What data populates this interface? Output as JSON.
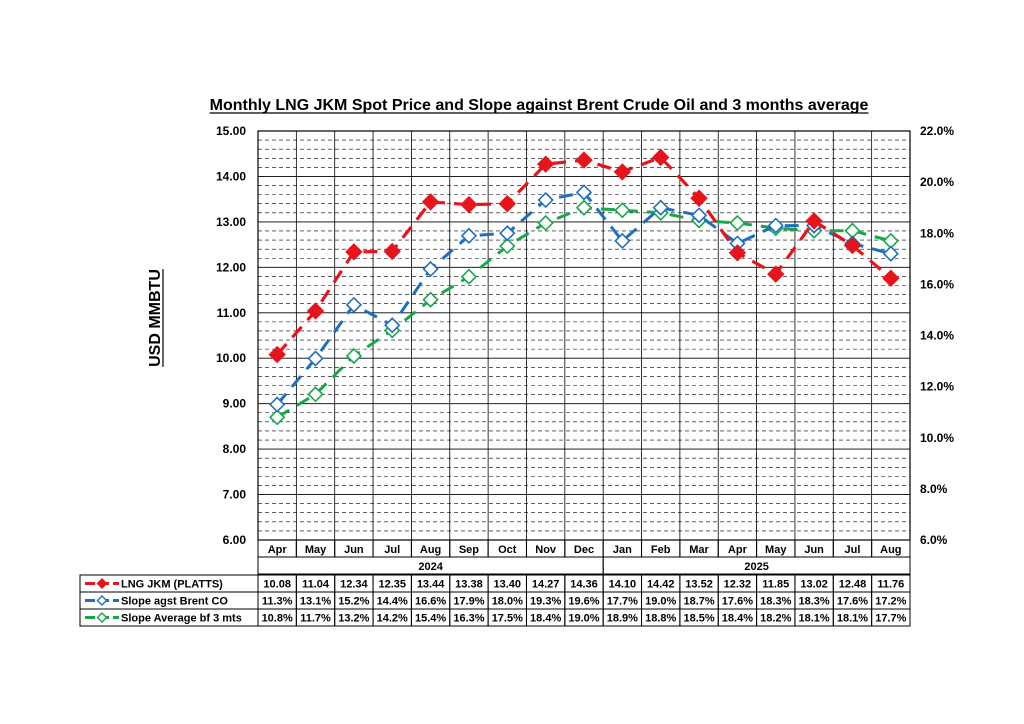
{
  "chart_data": {
    "type": "line",
    "title": "Monthly LNG JKM Spot Price and Slope against Brent Crude Oil and 3 months average",
    "ylabel": "USD MMBTU",
    "y2label": "",
    "categories": [
      "Apr",
      "May",
      "Jun",
      "Jul",
      "Aug",
      "Sep",
      "Oct",
      "Nov",
      "Dec",
      "Jan",
      "Feb",
      "Mar",
      "Apr",
      "May",
      "Jun",
      "Jul",
      "Aug"
    ],
    "year_groups": [
      {
        "label": "2024",
        "start": 0,
        "end": 8
      },
      {
        "label": "2025",
        "start": 9,
        "end": 16
      }
    ],
    "ylim": [
      6,
      15
    ],
    "y2lim": [
      6,
      22
    ],
    "y_ticks": [
      "6.00",
      "7.00",
      "8.00",
      "9.00",
      "10.00",
      "11.00",
      "12.00",
      "13.00",
      "14.00",
      "15.00"
    ],
    "y2_ticks": [
      "6.0%",
      "8.0%",
      "10.0%",
      "12.0%",
      "14.0%",
      "16.0%",
      "18.0%",
      "20.0%",
      "22.0%"
    ],
    "grid": true,
    "series": [
      {
        "name": "LNG JKM (PLATTS)",
        "axis": "left",
        "color": "#e8141b",
        "marker": "filled-diamond",
        "values": [
          10.08,
          11.04,
          12.34,
          12.35,
          13.44,
          13.38,
          13.4,
          14.27,
          14.36,
          14.1,
          14.42,
          13.52,
          12.32,
          11.85,
          13.02,
          12.48,
          11.76
        ],
        "labels": [
          "10.08",
          "11.04",
          "12.34",
          "12.35",
          "13.44",
          "13.38",
          "13.40",
          "14.27",
          "14.36",
          "14.10",
          "14.42",
          "13.52",
          "12.32",
          "11.85",
          "13.02",
          "12.48",
          "11.76"
        ]
      },
      {
        "name": "Slope agst Brent CO",
        "axis": "right",
        "color": "#1f6fbf",
        "marker": "open-diamond",
        "values": [
          11.3,
          13.1,
          15.2,
          14.4,
          16.6,
          17.9,
          18.0,
          19.3,
          19.6,
          17.7,
          19.0,
          18.7,
          17.6,
          18.3,
          18.3,
          17.6,
          17.2
        ],
        "labels": [
          "11.3%",
          "13.1%",
          "15.2%",
          "14.4%",
          "16.6%",
          "17.9%",
          "18.0%",
          "19.3%",
          "19.6%",
          "17.7%",
          "19.0%",
          "18.7%",
          "17.6%",
          "18.3%",
          "18.3%",
          "17.6%",
          "17.2%"
        ]
      },
      {
        "name": "Slope Average bf 3 mts",
        "axis": "right",
        "color": "#1aa64b",
        "marker": "open-diamond",
        "values": [
          10.8,
          11.7,
          13.2,
          14.2,
          15.4,
          16.3,
          17.5,
          18.4,
          19.0,
          18.9,
          18.8,
          18.5,
          18.4,
          18.2,
          18.1,
          18.1,
          17.7
        ],
        "labels": [
          "10.8%",
          "11.7%",
          "13.2%",
          "14.2%",
          "15.4%",
          "16.3%",
          "17.5%",
          "18.4%",
          "19.0%",
          "18.9%",
          "18.8%",
          "18.5%",
          "18.4%",
          "18.2%",
          "18.1%",
          "18.1%",
          "17.7%"
        ]
      }
    ]
  }
}
